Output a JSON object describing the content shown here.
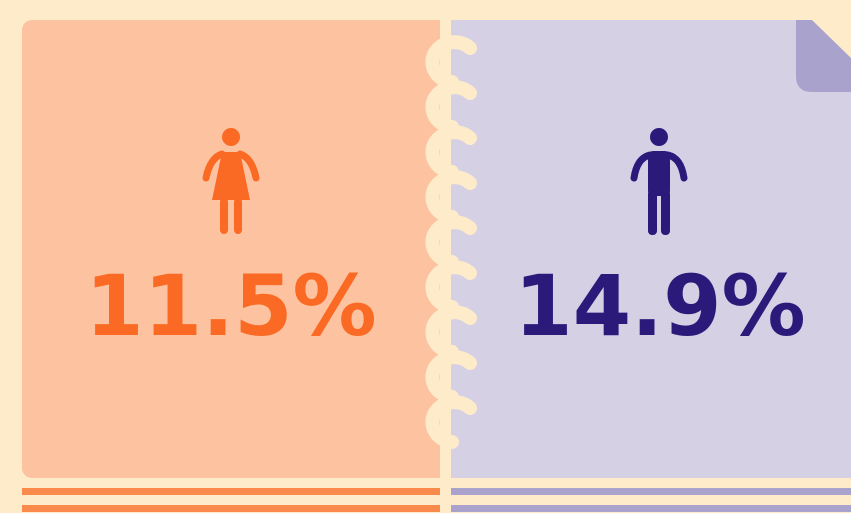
{
  "female": {
    "label": "11.5%"
  },
  "male": {
    "label": "14.9%"
  }
}
